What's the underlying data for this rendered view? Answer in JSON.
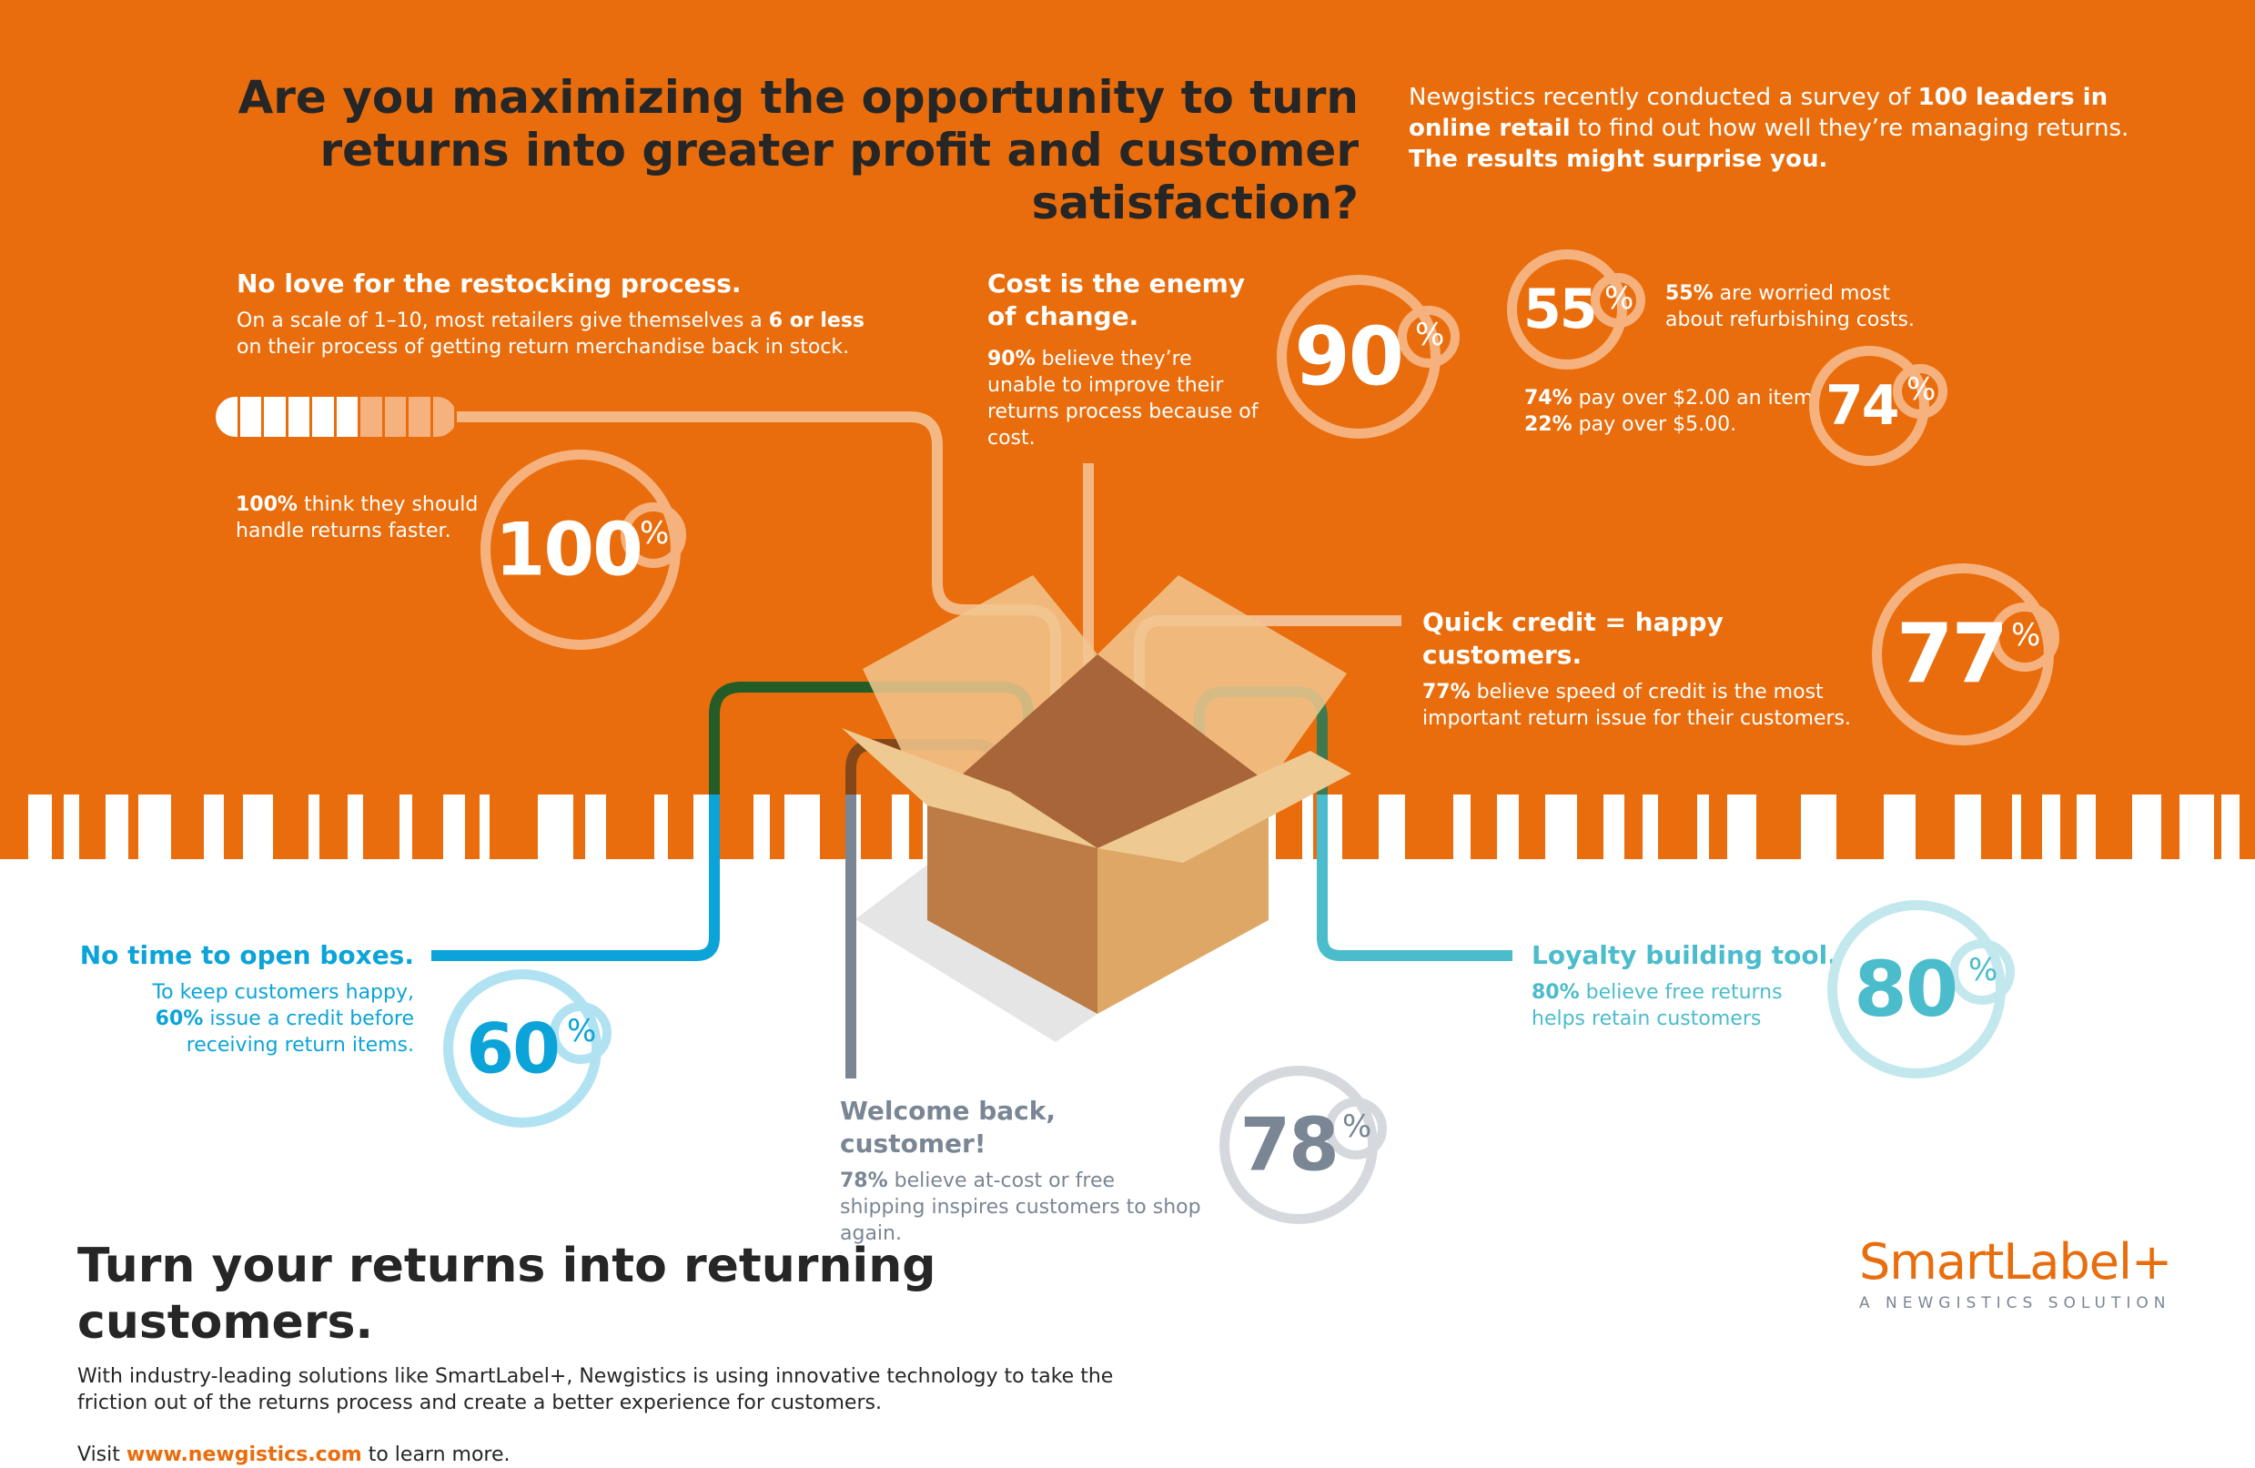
{
  "header": {
    "title": "Are you maximizing the opportunity to turn returns into greater profit and customer satisfaction?",
    "intro_1": "Newgistics recently conducted a survey of ",
    "intro_bold": "100 leaders in online retail",
    "intro_2": " to find out how well they’re managing returns. ",
    "intro_bold_2": "The results might surprise you."
  },
  "restock": {
    "heading": "No love for the restocking process.",
    "body_1": "On a scale of 1–10, most retailers give themselves a ",
    "body_bold": "6 or less",
    "body_2": " on their process of getting return merchandise back in stock.",
    "scale_filled": 6,
    "scale_total": 10
  },
  "faster": {
    "bold": "100%",
    "text": " think they should handle returns faster.",
    "value": "100",
    "pct": "%"
  },
  "cost": {
    "heading": "Cost is the enemy of change.",
    "bold": "90%",
    "text": " believe they’re unable to improve their returns process because of cost.",
    "value": "90",
    "pct": "%"
  },
  "refurb": {
    "bold": "55%",
    "text": " are worried most about refurbishing costs.",
    "value": "55",
    "pct": "%"
  },
  "pay": {
    "bold1": "74%",
    "text1": " pay over $2.00 an item.",
    "bold2": "22%",
    "text2": " pay over $5.00.",
    "value": "74",
    "pct": "%"
  },
  "credit": {
    "heading": "Quick credit = happy customers.",
    "bold": "77%",
    "text": " believe speed of credit is the most important return issue for their customers.",
    "value": "77",
    "pct": "%"
  },
  "open": {
    "heading": "No time to open boxes.",
    "text1": "To keep customers happy, ",
    "bold": "60%",
    "text2": " issue a credit before receiving return items.",
    "value": "60",
    "pct": "%",
    "color": "#0ca4d8"
  },
  "loyalty": {
    "heading": "Loyalty building tool.",
    "bold": "80%",
    "text": " believe free returns helps retain customers",
    "value": "80",
    "pct": "%",
    "color": "#4bbccc"
  },
  "welcome": {
    "heading": "Welcome back, customer!",
    "bold": "78%",
    "text": " believe at-cost or free shipping inspires customers to shop again.",
    "value": "78",
    "pct": "%",
    "color": "#7a8694"
  },
  "footer": {
    "heading": "Turn your returns into returning customers.",
    "body": "With industry-leading solutions like SmartLabel+, Newgistics is using innovative technology to take the friction out of the returns process and create a better experience for customers.",
    "visit_1": "Visit ",
    "link": "www.newgistics.com",
    "visit_2": " to learn more."
  },
  "logo": {
    "name": "SmartLabel+",
    "tagline": "A NEWGISTICS SOLUTION"
  },
  "colors": {
    "orange": "#e96d0c",
    "dark": "#262626"
  }
}
